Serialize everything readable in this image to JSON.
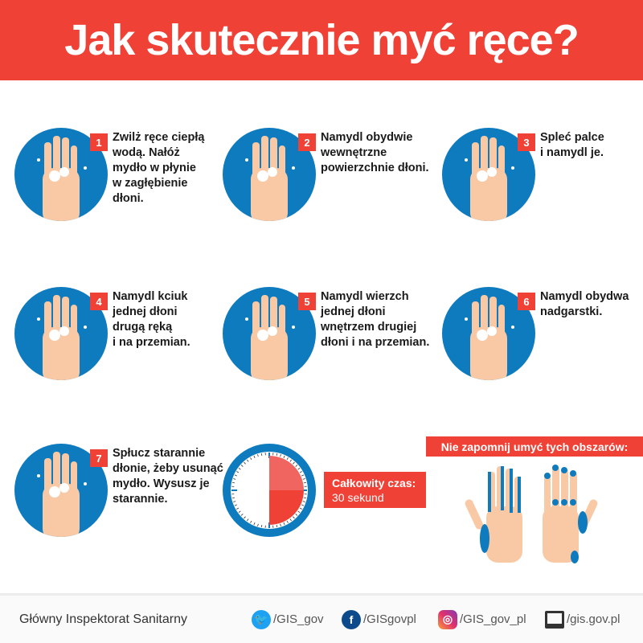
{
  "title": "Jak skutecznie myć ręce?",
  "colors": {
    "accent": "#ef4136",
    "circle": "#0f7bbf",
    "skin": "#f8c9a4"
  },
  "steps": [
    {
      "number": "1",
      "text": "Zwilż ręce ciepłą\nwodą. Nałóż\nmydło w płynie\nw zagłębienie\ndłoni."
    },
    {
      "number": "2",
      "text": "Namydl obydwie\nwewnętrzne\npowierzchnie dłoni."
    },
    {
      "number": "3",
      "text": "Spleć palce\ni namydl je."
    },
    {
      "number": "4",
      "text": "Namydl kciuk\njednej dłoni\ndrugą ręką\ni na przemian."
    },
    {
      "number": "5",
      "text": "Namydl wierzch\njednej dłoni\nwnętrzem drugiej\ndłoni i na przemian."
    },
    {
      "number": "6",
      "text": "Namydl obydwa\nnadgarstki."
    },
    {
      "number": "7",
      "text": "Spłucz starannie\ndłonie, żeby usunąć\nmydło. Wysusz je\nstarannie."
    }
  ],
  "timer": {
    "label": "Całkowity czas:",
    "value": "30 sekund",
    "fraction": 0.5
  },
  "reminder": "Nie zapomnij umyć tych obszarów:",
  "footer": {
    "organization": "Główny Inspektorat Sanitarny",
    "links": [
      {
        "icon": "twitter-icon",
        "label": "/GIS_gov"
      },
      {
        "icon": "facebook-icon",
        "label": "/GISgovpl"
      },
      {
        "icon": "instagram-icon",
        "label": "/GIS_gov_pl"
      },
      {
        "icon": "monitor-icon",
        "label": "/gis.gov.pl"
      }
    ]
  }
}
